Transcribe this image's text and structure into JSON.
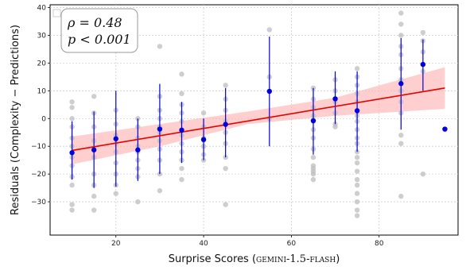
{
  "chart_data": {
    "type": "scatter",
    "xlabel": "Surprise Scores (GEMINI-1.5-FLASH)",
    "xlabel_parts": {
      "prefix": "Surprise Scores (",
      "model": "gemini-1.5-flash",
      "suffix": ")"
    },
    "ylabel": "Residuals (Complexity − Predictions)",
    "xlim": [
      5,
      98
    ],
    "ylim": [
      -42,
      41
    ],
    "xticks": [
      20,
      40,
      60,
      80
    ],
    "yticks": [
      -30,
      -20,
      -10,
      0,
      10,
      20,
      30,
      40
    ],
    "grid": true,
    "legend": "top-left",
    "annotation": {
      "rho": "ρ = 0.48",
      "p": "p < 0.001"
    },
    "colors": {
      "scatter": "#bdbdbd",
      "mean": "#0000dd",
      "fit": "#e60000",
      "band": "#ffb3b3"
    },
    "raw_points": {
      "x": [
        10,
        10,
        10,
        10,
        10,
        10,
        10,
        10,
        10,
        10,
        10,
        10,
        15,
        15,
        15,
        15,
        15,
        15,
        15,
        15,
        15,
        15,
        20,
        20,
        20,
        20,
        20,
        20,
        20,
        20,
        20,
        25,
        25,
        25,
        25,
        25,
        25,
        25,
        25,
        25,
        30,
        30,
        30,
        30,
        30,
        30,
        30,
        30,
        30,
        30,
        30,
        35,
        35,
        35,
        35,
        35,
        35,
        35,
        35,
        35,
        35,
        35,
        35,
        40,
        40,
        40,
        40,
        40,
        40,
        45,
        45,
        45,
        45,
        45,
        45,
        45,
        45,
        45,
        55,
        55,
        55,
        65,
        65,
        65,
        65,
        65,
        65,
        65,
        65,
        65,
        65,
        65,
        65,
        65,
        65,
        70,
        70,
        70,
        70,
        70,
        70,
        75,
        75,
        75,
        75,
        75,
        75,
        75,
        75,
        75,
        75,
        75,
        75,
        75,
        75,
        75,
        75,
        75,
        75,
        75,
        75,
        75,
        85,
        85,
        85,
        85,
        85,
        85,
        85,
        85,
        85,
        85,
        85,
        85,
        85,
        90,
        90,
        90,
        90,
        90,
        95
      ],
      "y": [
        6,
        4,
        0,
        -3,
        -7,
        -10,
        -14,
        -17,
        -21,
        -24,
        -31,
        -33,
        8,
        2,
        -3,
        -8,
        -11,
        -14,
        -20,
        -24,
        -28,
        -33,
        3,
        -2,
        -6,
        -9,
        -12,
        -16,
        -20,
        -24,
        -27,
        0,
        -3,
        -7,
        -10,
        -12,
        -15,
        -18,
        -21,
        -30,
        26,
        8,
        3,
        0,
        -3,
        -5,
        -8,
        -11,
        -15,
        -20,
        -26,
        16,
        9,
        5,
        2,
        -1,
        -4,
        -6,
        -9,
        -12,
        -15,
        -18,
        -22,
        2,
        -3,
        -7,
        -10,
        -13,
        -15,
        12,
        7,
        3,
        -1,
        -5,
        -9,
        -14,
        -18,
        -31,
        32,
        15,
        0,
        11,
        7,
        4,
        1,
        -1,
        -4,
        -7,
        -11,
        -14,
        -17,
        -18,
        -19,
        -20,
        -22,
        14,
        10,
        6,
        2,
        -2,
        -3,
        18,
        15,
        12,
        9,
        6,
        3,
        1,
        -1,
        -4,
        -7,
        -9,
        -12,
        -14,
        -16,
        -19,
        -22,
        -24,
        -27,
        -30,
        -33,
        -35,
        38,
        34,
        30,
        26,
        23,
        18,
        14,
        10,
        6,
        2,
        -6,
        -9,
        -28,
        31,
        28,
        24,
        17,
        -20,
        -4
      ]
    },
    "means": {
      "x": [
        10,
        15,
        20,
        25,
        30,
        35,
        40,
        45,
        55,
        65,
        70,
        75,
        85,
        90,
        95
      ],
      "y": [
        -12.3,
        -11.3,
        -7.3,
        -11.3,
        -3.8,
        -4.2,
        -7.6,
        -2.1,
        9.8,
        -0.8,
        7.1,
        2.8,
        12.6,
        19.5,
        -3.8
      ],
      "ci_low": [
        -22,
        -25,
        -24.5,
        -22.5,
        -20,
        -16,
        -15,
        -14,
        -10,
        -13,
        -2,
        -12,
        -4,
        10,
        null
      ],
      "ci_high": [
        -1,
        2.5,
        10,
        0,
        12.5,
        6,
        0,
        11,
        29.5,
        11,
        17,
        17,
        29,
        28.5,
        null
      ]
    },
    "fit": {
      "x0": 10,
      "y0": -11.5,
      "x1": 95,
      "y1": 11
    },
    "band": {
      "x": [
        10,
        30,
        50,
        70,
        95
      ],
      "upper": [
        -6.5,
        -2,
        2.5,
        7.5,
        18.5
      ],
      "lower": [
        -16.5,
        -10,
        -2,
        1,
        3.5
      ]
    }
  }
}
